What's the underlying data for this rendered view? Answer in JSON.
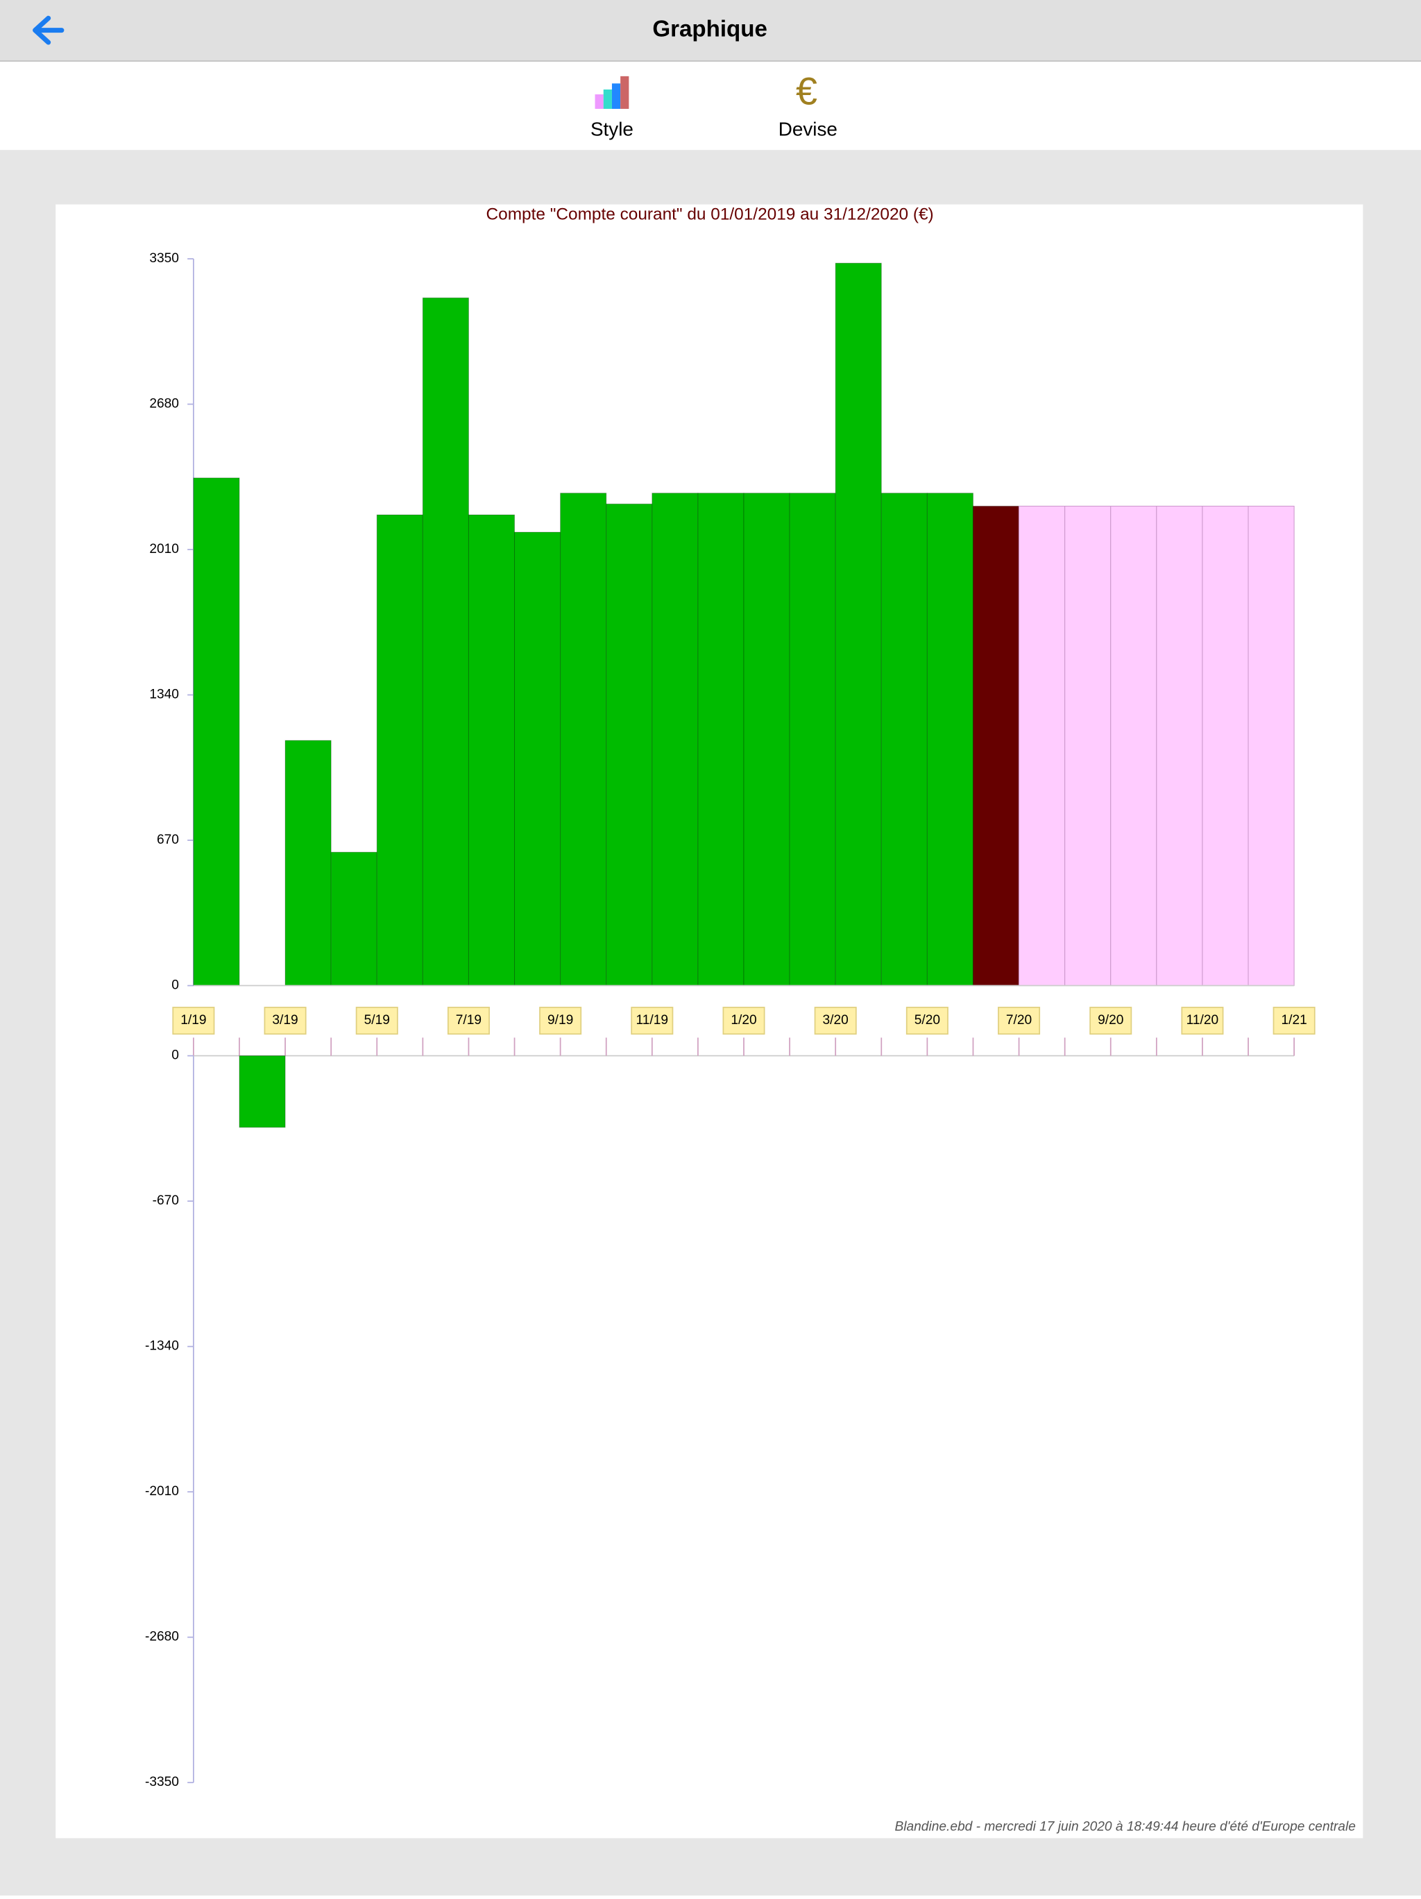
{
  "app": {
    "title": "Graphique",
    "toolbar": [
      {
        "label": "Style"
      },
      {
        "label": "Devise",
        "icon": "€"
      }
    ],
    "footer": "Blandine.ebd - mercredi 17 juin 2020 à 18:49:44 heure d'été d'Europe centrale"
  },
  "chart_data": {
    "type": "bar",
    "title": "Compte \"Compte courant\" du 01/01/2019 au 31/12/2020 (€)",
    "values": [
      2340,
      -330,
      1130,
      615,
      2170,
      3170,
      2170,
      2090,
      2270,
      2220,
      2270,
      2270,
      2270,
      2270,
      3330,
      2270,
      2270,
      2210,
      2210,
      2210,
      2210,
      2210,
      2210,
      2210
    ],
    "colors": [
      "#00bb00",
      "#00bb00",
      "#00bb00",
      "#00bb00",
      "#00bb00",
      "#00bb00",
      "#00bb00",
      "#00bb00",
      "#00bb00",
      "#00bb00",
      "#00bb00",
      "#00bb00",
      "#00bb00",
      "#00bb00",
      "#00bb00",
      "#00bb00",
      "#00bb00",
      "#660000",
      "#ffccff",
      "#ffccff",
      "#ffccff",
      "#ffccff",
      "#ffccff",
      "#ffccff"
    ],
    "ylim": [
      0,
      3350
    ],
    "yticks": [
      0,
      670,
      1340,
      2010,
      2680,
      3350
    ],
    "ylim_negative": [
      -3350,
      0
    ],
    "yticks_negative": [
      0,
      -670,
      -1340,
      -2010,
      -2680,
      -3350
    ],
    "xticks": [
      "1/19",
      "3/19",
      "5/19",
      "7/19",
      "9/19",
      "11/19",
      "1/20",
      "3/20",
      "5/20",
      "7/20",
      "9/20",
      "11/20",
      "1/21"
    ],
    "xtick_step": 2
  }
}
